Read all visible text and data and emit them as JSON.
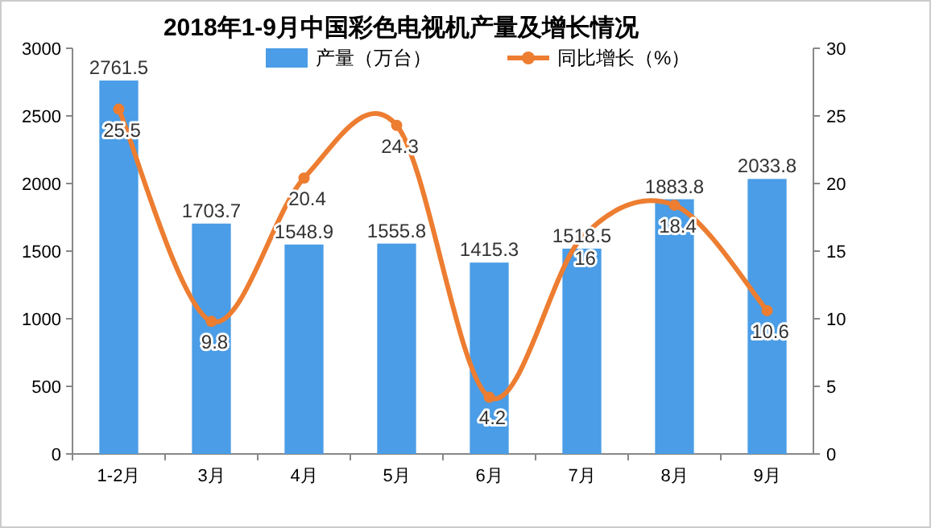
{
  "chart_data": {
    "type": "bar",
    "title": "2018年1-9月中国彩色电视机产量及增长情况",
    "categories": [
      "1-2月",
      "3月",
      "4月",
      "5月",
      "6月",
      "7月",
      "8月",
      "9月"
    ],
    "series": [
      {
        "name": "产量（万台）",
        "color": "#4a9de6",
        "values": [
          2761.5,
          1703.7,
          1548.9,
          1555.8,
          1415.3,
          1518.5,
          1883.8,
          2033.8
        ]
      },
      {
        "name": "同比增长（%）",
        "type": "line",
        "axis": "y2",
        "color": "#ed7d31",
        "values": [
          25.5,
          9.8,
          20.4,
          24.3,
          4.2,
          16,
          18.4,
          10.6
        ]
      }
    ],
    "ylim": [
      0,
      3000
    ],
    "yticks": [
      0,
      500,
      1000,
      1500,
      2000,
      2500,
      3000
    ],
    "y2lim": [
      0,
      30
    ],
    "y2ticks": [
      0,
      5,
      10,
      15,
      20,
      25,
      30
    ],
    "data_labels": true,
    "legend": "top",
    "marker": "circle",
    "grid": false
  }
}
